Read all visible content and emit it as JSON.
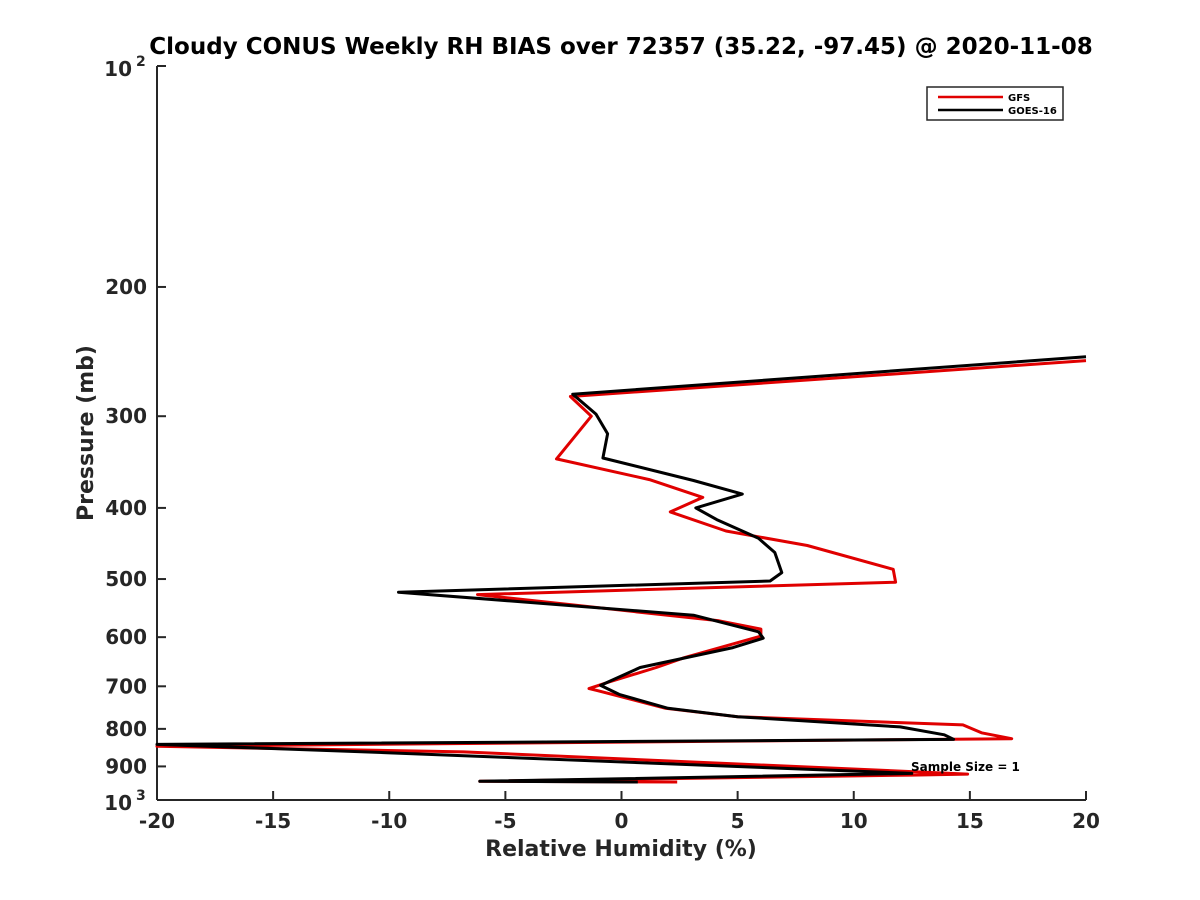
{
  "chart_data": {
    "type": "line",
    "title": "Cloudy CONUS Weekly RH BIAS over 72357 (35.22, -97.45) @ 2020-11-08",
    "xlabel": "Relative Humidity (%)",
    "ylabel": "Pressure (mb)",
    "xlim": [
      -20,
      20
    ],
    "ylim": [
      100,
      1000
    ],
    "yscale": "log",
    "y_reversed": true,
    "x_ticks": [
      "-20",
      "-15",
      "-10",
      "-5",
      "0",
      "5",
      "10",
      "15",
      "20"
    ],
    "y_ticks": [
      {
        "value": 200,
        "label": "200"
      },
      {
        "value": 300,
        "label": "300"
      },
      {
        "value": 400,
        "label": "400"
      },
      {
        "value": 500,
        "label": "500"
      },
      {
        "value": 600,
        "label": "600"
      },
      {
        "value": 700,
        "label": "700"
      },
      {
        "value": 800,
        "label": "800"
      },
      {
        "value": 900,
        "label": "900"
      }
    ],
    "y_top_label": {
      "base": "10",
      "exp": "2"
    },
    "y_bottom_label": {
      "base": "10",
      "exp": "3"
    },
    "grid": false,
    "legend_position": "top-right",
    "annotation": "Sample Size = 1",
    "series": [
      {
        "name": "GFS",
        "color": "#e00000",
        "points": [
          [
            20.0,
            252
          ],
          [
            -2.2,
            282
          ],
          [
            -1.3,
            300
          ],
          [
            -2.8,
            343
          ],
          [
            1.2,
            366
          ],
          [
            3.5,
            387
          ],
          [
            2.1,
            405
          ],
          [
            4.5,
            430
          ],
          [
            8.0,
            450
          ],
          [
            11.7,
            485
          ],
          [
            11.8,
            505
          ],
          [
            -6.2,
            525
          ],
          [
            4.2,
            570
          ],
          [
            6.0,
            585
          ],
          [
            6.0,
            598
          ],
          [
            2.7,
            640
          ],
          [
            1.5,
            660
          ],
          [
            -0.5,
            690
          ],
          [
            -1.4,
            705
          ],
          [
            -1.0,
            710
          ],
          [
            1.9,
            750
          ],
          [
            5.0,
            770
          ],
          [
            14.7,
            790
          ],
          [
            15.5,
            810
          ],
          [
            16.8,
            825
          ],
          [
            -20,
            845
          ],
          [
            -6.8,
            860
          ],
          [
            14.9,
            922
          ],
          [
            12.5,
            925
          ],
          [
            -6.1,
            943
          ],
          [
            2.4,
            945
          ]
        ]
      },
      {
        "name": "GOES-16",
        "color": "#000000",
        "points": [
          [
            20.0,
            249
          ],
          [
            -2.1,
            280
          ],
          [
            -1.1,
            298
          ],
          [
            -0.6,
            317
          ],
          [
            -0.8,
            342
          ],
          [
            3.1,
            367
          ],
          [
            5.2,
            383
          ],
          [
            3.2,
            400
          ],
          [
            4.1,
            415
          ],
          [
            5.9,
            440
          ],
          [
            6.6,
            460
          ],
          [
            6.9,
            490
          ],
          [
            6.4,
            503
          ],
          [
            -9.6,
            521
          ],
          [
            3.1,
            560
          ],
          [
            5.9,
            590
          ],
          [
            6.1,
            602
          ],
          [
            4.8,
            620
          ],
          [
            0.8,
            660
          ],
          [
            -0.9,
            698
          ],
          [
            -0.1,
            718
          ],
          [
            2.0,
            750
          ],
          [
            5.0,
            770
          ],
          [
            12.0,
            795
          ],
          [
            13.9,
            815
          ],
          [
            14.3,
            827
          ],
          [
            -20,
            840
          ],
          [
            -10.1,
            862
          ],
          [
            12.5,
            920
          ],
          [
            -6.1,
            943
          ],
          [
            0.7,
            945
          ]
        ]
      }
    ]
  }
}
